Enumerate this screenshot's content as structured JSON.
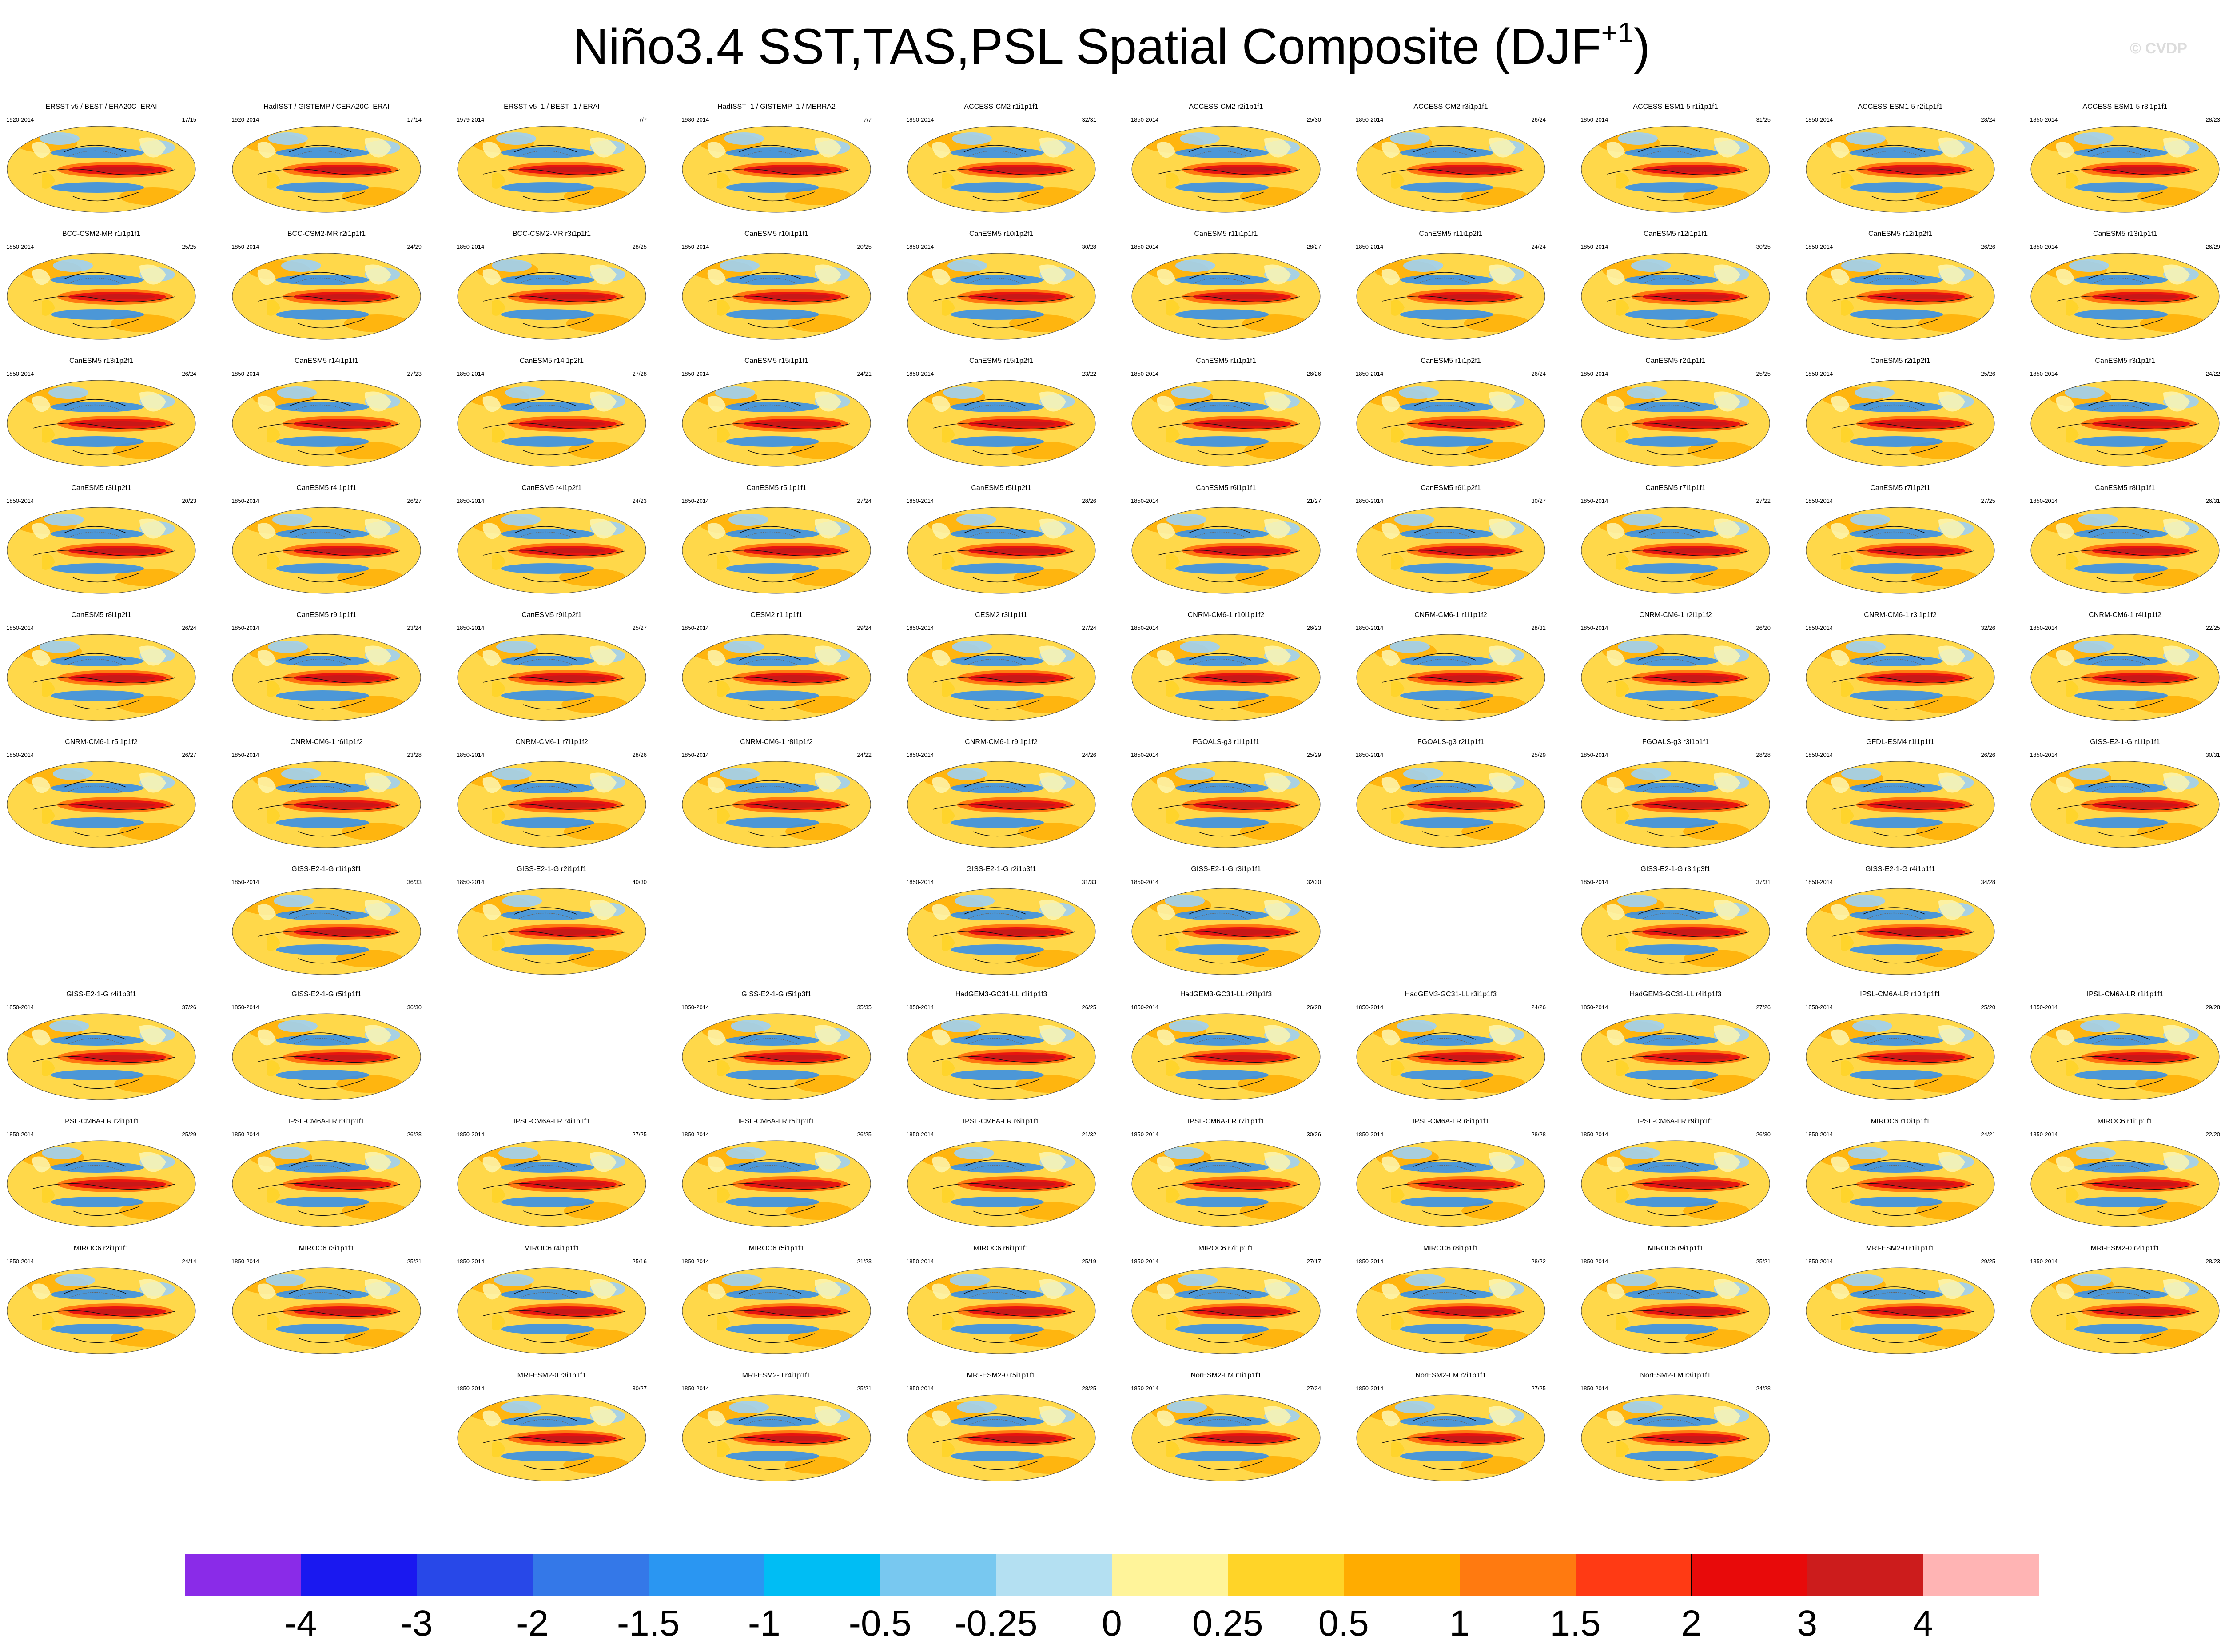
{
  "title": {
    "text": "Niño3.4 SST,TAS,PSL Spatial Composite (DJF",
    "sup": "+1",
    "close": ")"
  },
  "watermark": "© CVDP",
  "colors": {
    "ocean_base": "#ffd84a",
    "land_base": "#fdf6b0",
    "warm_tongue": "#e81410",
    "warm_core": "#c81818",
    "cool": "#2d8cf0",
    "cool_light": "#9fd0f4",
    "contour": "#111111",
    "contour_dashed": "#666666"
  },
  "chart_data": {
    "type": "heatmap",
    "title": "Niño3.4 SST,TAS,PSL Spatial Composite (DJF+1)",
    "variables": [
      "SST",
      "TAS",
      "PSL"
    ],
    "season": "DJF+1",
    "colorbar": {
      "labels": [
        "-4",
        "-3",
        "-2",
        "-1.5",
        "-1",
        "-0.5",
        "-0.25",
        "0",
        "0.25",
        "0.5",
        "1",
        "1.5",
        "2",
        "3",
        "4"
      ],
      "colors": [
        "#8a2be8",
        "#1a18f0",
        "#2848e8",
        "#3478e8",
        "#2a96f2",
        "#00bdf4",
        "#78c8f0",
        "#b4e0f2",
        "#fff49a",
        "#ffd428",
        "#ffac00",
        "#ff7a10",
        "#ff3a14",
        "#e80a0a",
        "#cc1c1c",
        "#ffb4b4"
      ]
    },
    "panels": [
      {
        "row": 0,
        "col": 0,
        "title": "ERSST v5 / BEST / ERA20C_ERAI",
        "years": "1920-2014",
        "count": "17/15"
      },
      {
        "row": 0,
        "col": 1,
        "title": "HadISST / GISTEMP / CERA20C_ERAI",
        "years": "1920-2014",
        "count": "17/14"
      },
      {
        "row": 0,
        "col": 2,
        "title": "ERSST v5_1 / BEST_1 / ERAI",
        "years": "1979-2014",
        "count": "7/7"
      },
      {
        "row": 0,
        "col": 3,
        "title": "HadISST_1 / GISTEMP_1 / MERRA2",
        "years": "1980-2014",
        "count": "7/7"
      },
      {
        "row": 0,
        "col": 4,
        "title": "ACCESS-CM2 r1i1p1f1",
        "years": "1850-2014",
        "count": "32/31"
      },
      {
        "row": 0,
        "col": 5,
        "title": "ACCESS-CM2 r2i1p1f1",
        "years": "1850-2014",
        "count": "25/30"
      },
      {
        "row": 0,
        "col": 6,
        "title": "ACCESS-CM2 r3i1p1f1",
        "years": "1850-2014",
        "count": "26/24"
      },
      {
        "row": 0,
        "col": 7,
        "title": "ACCESS-ESM1-5 r1i1p1f1",
        "years": "1850-2014",
        "count": "31/25"
      },
      {
        "row": 0,
        "col": 8,
        "title": "ACCESS-ESM1-5 r2i1p1f1",
        "years": "1850-2014",
        "count": "28/24"
      },
      {
        "row": 0,
        "col": 9,
        "title": "ACCESS-ESM1-5 r3i1p1f1",
        "years": "1850-2014",
        "count": "28/23"
      },
      {
        "row": 1,
        "col": 0,
        "title": "BCC-CSM2-MR r1i1p1f1",
        "years": "1850-2014",
        "count": "25/25"
      },
      {
        "row": 1,
        "col": 1,
        "title": "BCC-CSM2-MR r2i1p1f1",
        "years": "1850-2014",
        "count": "24/29"
      },
      {
        "row": 1,
        "col": 2,
        "title": "BCC-CSM2-MR r3i1p1f1",
        "years": "1850-2014",
        "count": "28/25"
      },
      {
        "row": 1,
        "col": 3,
        "title": "CanESM5 r10i1p1f1",
        "years": "1850-2014",
        "count": "20/25"
      },
      {
        "row": 1,
        "col": 4,
        "title": "CanESM5 r10i1p2f1",
        "years": "1850-2014",
        "count": "30/28"
      },
      {
        "row": 1,
        "col": 5,
        "title": "CanESM5 r11i1p1f1",
        "years": "1850-2014",
        "count": "28/27"
      },
      {
        "row": 1,
        "col": 6,
        "title": "CanESM5 r11i1p2f1",
        "years": "1850-2014",
        "count": "24/24"
      },
      {
        "row": 1,
        "col": 7,
        "title": "CanESM5 r12i1p1f1",
        "years": "1850-2014",
        "count": "30/25"
      },
      {
        "row": 1,
        "col": 8,
        "title": "CanESM5 r12i1p2f1",
        "years": "1850-2014",
        "count": "26/26"
      },
      {
        "row": 1,
        "col": 9,
        "title": "CanESM5 r13i1p1f1",
        "years": "1850-2014",
        "count": "26/29"
      },
      {
        "row": 2,
        "col": 0,
        "title": "CanESM5 r13i1p2f1",
        "years": "1850-2014",
        "count": "26/24"
      },
      {
        "row": 2,
        "col": 1,
        "title": "CanESM5 r14i1p1f1",
        "years": "1850-2014",
        "count": "27/23"
      },
      {
        "row": 2,
        "col": 2,
        "title": "CanESM5 r14i1p2f1",
        "years": "1850-2014",
        "count": "27/28"
      },
      {
        "row": 2,
        "col": 3,
        "title": "CanESM5 r15i1p1f1",
        "years": "1850-2014",
        "count": "24/21"
      },
      {
        "row": 2,
        "col": 4,
        "title": "CanESM5 r15i1p2f1",
        "years": "1850-2014",
        "count": "23/22"
      },
      {
        "row": 2,
        "col": 5,
        "title": "CanESM5 r1i1p1f1",
        "years": "1850-2014",
        "count": "26/26"
      },
      {
        "row": 2,
        "col": 6,
        "title": "CanESM5 r1i1p2f1",
        "years": "1850-2014",
        "count": "26/24"
      },
      {
        "row": 2,
        "col": 7,
        "title": "CanESM5 r2i1p1f1",
        "years": "1850-2014",
        "count": "25/25"
      },
      {
        "row": 2,
        "col": 8,
        "title": "CanESM5 r2i1p2f1",
        "years": "1850-2014",
        "count": "25/26"
      },
      {
        "row": 2,
        "col": 9,
        "title": "CanESM5 r3i1p1f1",
        "years": "1850-2014",
        "count": "24/22"
      },
      {
        "row": 3,
        "col": 0,
        "title": "CanESM5 r3i1p2f1",
        "years": "1850-2014",
        "count": "20/23"
      },
      {
        "row": 3,
        "col": 1,
        "title": "CanESM5 r4i1p1f1",
        "years": "1850-2014",
        "count": "26/27"
      },
      {
        "row": 3,
        "col": 2,
        "title": "CanESM5 r4i1p2f1",
        "years": "1850-2014",
        "count": "24/23"
      },
      {
        "row": 3,
        "col": 3,
        "title": "CanESM5 r5i1p1f1",
        "years": "1850-2014",
        "count": "27/24"
      },
      {
        "row": 3,
        "col": 4,
        "title": "CanESM5 r5i1p2f1",
        "years": "1850-2014",
        "count": "28/26"
      },
      {
        "row": 3,
        "col": 5,
        "title": "CanESM5 r6i1p1f1",
        "years": "1850-2014",
        "count": "21/27"
      },
      {
        "row": 3,
        "col": 6,
        "title": "CanESM5 r6i1p2f1",
        "years": "1850-2014",
        "count": "30/27"
      },
      {
        "row": 3,
        "col": 7,
        "title": "CanESM5 r7i1p1f1",
        "years": "1850-2014",
        "count": "27/22"
      },
      {
        "row": 3,
        "col": 8,
        "title": "CanESM5 r7i1p2f1",
        "years": "1850-2014",
        "count": "27/25"
      },
      {
        "row": 3,
        "col": 9,
        "title": "CanESM5 r8i1p1f1",
        "years": "1850-2014",
        "count": "26/31"
      },
      {
        "row": 4,
        "col": 0,
        "title": "CanESM5 r8i1p2f1",
        "years": "1850-2014",
        "count": "26/24"
      },
      {
        "row": 4,
        "col": 1,
        "title": "CanESM5 r9i1p1f1",
        "years": "1850-2014",
        "count": "23/24"
      },
      {
        "row": 4,
        "col": 2,
        "title": "CanESM5 r9i1p2f1",
        "years": "1850-2014",
        "count": "25/27"
      },
      {
        "row": 4,
        "col": 3,
        "title": "CESM2 r1i1p1f1",
        "years": "1850-2014",
        "count": "29/24"
      },
      {
        "row": 4,
        "col": 4,
        "title": "CESM2 r3i1p1f1",
        "years": "1850-2014",
        "count": "27/24"
      },
      {
        "row": 4,
        "col": 5,
        "title": "CNRM-CM6-1 r10i1p1f2",
        "years": "1850-2014",
        "count": "26/23"
      },
      {
        "row": 4,
        "col": 6,
        "title": "CNRM-CM6-1 r1i1p1f2",
        "years": "1850-2014",
        "count": "28/31"
      },
      {
        "row": 4,
        "col": 7,
        "title": "CNRM-CM6-1 r2i1p1f2",
        "years": "1850-2014",
        "count": "26/20"
      },
      {
        "row": 4,
        "col": 8,
        "title": "CNRM-CM6-1 r3i1p1f2",
        "years": "1850-2014",
        "count": "32/26"
      },
      {
        "row": 4,
        "col": 9,
        "title": "CNRM-CM6-1 r4i1p1f2",
        "years": "1850-2014",
        "count": "22/25"
      },
      {
        "row": 5,
        "col": 0,
        "title": "CNRM-CM6-1 r5i1p1f2",
        "years": "1850-2014",
        "count": "26/27"
      },
      {
        "row": 5,
        "col": 1,
        "title": "CNRM-CM6-1 r6i1p1f2",
        "years": "1850-2014",
        "count": "23/28"
      },
      {
        "row": 5,
        "col": 2,
        "title": "CNRM-CM6-1 r7i1p1f2",
        "years": "1850-2014",
        "count": "28/26"
      },
      {
        "row": 5,
        "col": 3,
        "title": "CNRM-CM6-1 r8i1p1f2",
        "years": "1850-2014",
        "count": "24/22"
      },
      {
        "row": 5,
        "col": 4,
        "title": "CNRM-CM6-1 r9i1p1f2",
        "years": "1850-2014",
        "count": "24/26"
      },
      {
        "row": 5,
        "col": 5,
        "title": "FGOALS-g3 r1i1p1f1",
        "years": "1850-2014",
        "count": "25/29"
      },
      {
        "row": 5,
        "col": 6,
        "title": "FGOALS-g3 r2i1p1f1",
        "years": "1850-2014",
        "count": "25/29"
      },
      {
        "row": 5,
        "col": 7,
        "title": "FGOALS-g3 r3i1p1f1",
        "years": "1850-2014",
        "count": "28/28"
      },
      {
        "row": 5,
        "col": 8,
        "title": "GFDL-ESM4 r1i1p1f1",
        "years": "1850-2014",
        "count": "26/26"
      },
      {
        "row": 5,
        "col": 9,
        "title": "GISS-E2-1-G r1i1p1f1",
        "years": "1850-2014",
        "count": "30/31"
      },
      {
        "row": 6,
        "col": 1,
        "title": "GISS-E2-1-G r1i1p3f1",
        "years": "1850-2014",
        "count": "36/33"
      },
      {
        "row": 6,
        "col": 2,
        "title": "GISS-E2-1-G r2i1p1f1",
        "years": "1850-2014",
        "count": "40/30"
      },
      {
        "row": 6,
        "col": 4,
        "title": "GISS-E2-1-G r2i1p3f1",
        "years": "1850-2014",
        "count": "31/33"
      },
      {
        "row": 6,
        "col": 5,
        "title": "GISS-E2-1-G r3i1p1f1",
        "years": "1850-2014",
        "count": "32/30"
      },
      {
        "row": 6,
        "col": 7,
        "title": "GISS-E2-1-G r3i1p3f1",
        "years": "1850-2014",
        "count": "37/31"
      },
      {
        "row": 6,
        "col": 8,
        "title": "GISS-E2-1-G r4i1p1f1",
        "years": "1850-2014",
        "count": "34/28"
      },
      {
        "row": 7,
        "col": 0,
        "title": "GISS-E2-1-G r4i1p3f1",
        "years": "1850-2014",
        "count": "37/26"
      },
      {
        "row": 7,
        "col": 1,
        "title": "GISS-E2-1-G r5i1p1f1",
        "years": "1850-2014",
        "count": "36/30"
      },
      {
        "row": 7,
        "col": 3,
        "title": "GISS-E2-1-G r5i1p3f1",
        "years": "1850-2014",
        "count": "35/35"
      },
      {
        "row": 7,
        "col": 4,
        "title": "HadGEM3-GC31-LL r1i1p1f3",
        "years": "1850-2014",
        "count": "26/25"
      },
      {
        "row": 7,
        "col": 5,
        "title": "HadGEM3-GC31-LL r2i1p1f3",
        "years": "1850-2014",
        "count": "26/28"
      },
      {
        "row": 7,
        "col": 6,
        "title": "HadGEM3-GC31-LL r3i1p1f3",
        "years": "1850-2014",
        "count": "24/26"
      },
      {
        "row": 7,
        "col": 7,
        "title": "HadGEM3-GC31-LL r4i1p1f3",
        "years": "1850-2014",
        "count": "27/26"
      },
      {
        "row": 7,
        "col": 8,
        "title": "IPSL-CM6A-LR r10i1p1f1",
        "years": "1850-2014",
        "count": "25/20"
      },
      {
        "row": 7,
        "col": 9,
        "title": "IPSL-CM6A-LR r1i1p1f1",
        "years": "1850-2014",
        "count": "29/28"
      },
      {
        "row": 8,
        "col": 0,
        "title": "IPSL-CM6A-LR r2i1p1f1",
        "years": "1850-2014",
        "count": "25/29"
      },
      {
        "row": 8,
        "col": 1,
        "title": "IPSL-CM6A-LR r3i1p1f1",
        "years": "1850-2014",
        "count": "26/28"
      },
      {
        "row": 8,
        "col": 2,
        "title": "IPSL-CM6A-LR r4i1p1f1",
        "years": "1850-2014",
        "count": "27/25"
      },
      {
        "row": 8,
        "col": 3,
        "title": "IPSL-CM6A-LR r5i1p1f1",
        "years": "1850-2014",
        "count": "26/25"
      },
      {
        "row": 8,
        "col": 4,
        "title": "IPSL-CM6A-LR r6i1p1f1",
        "years": "1850-2014",
        "count": "21/32"
      },
      {
        "row": 8,
        "col": 5,
        "title": "IPSL-CM6A-LR r7i1p1f1",
        "years": "1850-2014",
        "count": "30/26"
      },
      {
        "row": 8,
        "col": 6,
        "title": "IPSL-CM6A-LR r8i1p1f1",
        "years": "1850-2014",
        "count": "28/28"
      },
      {
        "row": 8,
        "col": 7,
        "title": "IPSL-CM6A-LR r9i1p1f1",
        "years": "1850-2014",
        "count": "26/30"
      },
      {
        "row": 8,
        "col": 8,
        "title": "MIROC6 r10i1p1f1",
        "years": "1850-2014",
        "count": "24/21"
      },
      {
        "row": 8,
        "col": 9,
        "title": "MIROC6 r1i1p1f1",
        "years": "1850-2014",
        "count": "22/20"
      },
      {
        "row": 9,
        "col": 0,
        "title": "MIROC6 r2i1p1f1",
        "years": "1850-2014",
        "count": "24/14"
      },
      {
        "row": 9,
        "col": 1,
        "title": "MIROC6 r3i1p1f1",
        "years": "1850-2014",
        "count": "25/21"
      },
      {
        "row": 9,
        "col": 2,
        "title": "MIROC6 r4i1p1f1",
        "years": "1850-2014",
        "count": "25/16"
      },
      {
        "row": 9,
        "col": 3,
        "title": "MIROC6 r5i1p1f1",
        "years": "1850-2014",
        "count": "21/23"
      },
      {
        "row": 9,
        "col": 4,
        "title": "MIROC6 r6i1p1f1",
        "years": "1850-2014",
        "count": "25/19"
      },
      {
        "row": 9,
        "col": 5,
        "title": "MIROC6 r7i1p1f1",
        "years": "1850-2014",
        "count": "27/17"
      },
      {
        "row": 9,
        "col": 6,
        "title": "MIROC6 r8i1p1f1",
        "years": "1850-2014",
        "count": "28/22"
      },
      {
        "row": 9,
        "col": 7,
        "title": "MIROC6 r9i1p1f1",
        "years": "1850-2014",
        "count": "25/21"
      },
      {
        "row": 9,
        "col": 8,
        "title": "MRI-ESM2-0 r1i1p1f1",
        "years": "1850-2014",
        "count": "29/25"
      },
      {
        "row": 9,
        "col": 9,
        "title": "MRI-ESM2-0 r2i1p1f1",
        "years": "1850-2014",
        "count": "28/23"
      },
      {
        "row": 10,
        "col": 2,
        "title": "MRI-ESM2-0 r3i1p1f1",
        "years": "1850-2014",
        "count": "30/27"
      },
      {
        "row": 10,
        "col": 3,
        "title": "MRI-ESM2-0 r4i1p1f1",
        "years": "1850-2014",
        "count": "25/21"
      },
      {
        "row": 10,
        "col": 4,
        "title": "MRI-ESM2-0 r5i1p1f1",
        "years": "1850-2014",
        "count": "28/25"
      },
      {
        "row": 10,
        "col": 5,
        "title": "NorESM2-LM r1i1p1f1",
        "years": "1850-2014",
        "count": "27/24"
      },
      {
        "row": 10,
        "col": 6,
        "title": "NorESM2-LM r2i1p1f1",
        "years": "1850-2014",
        "count": "27/25"
      },
      {
        "row": 10,
        "col": 7,
        "title": "NorESM2-LM r3i1p1f1",
        "years": "1850-2014",
        "count": "24/28"
      }
    ]
  }
}
